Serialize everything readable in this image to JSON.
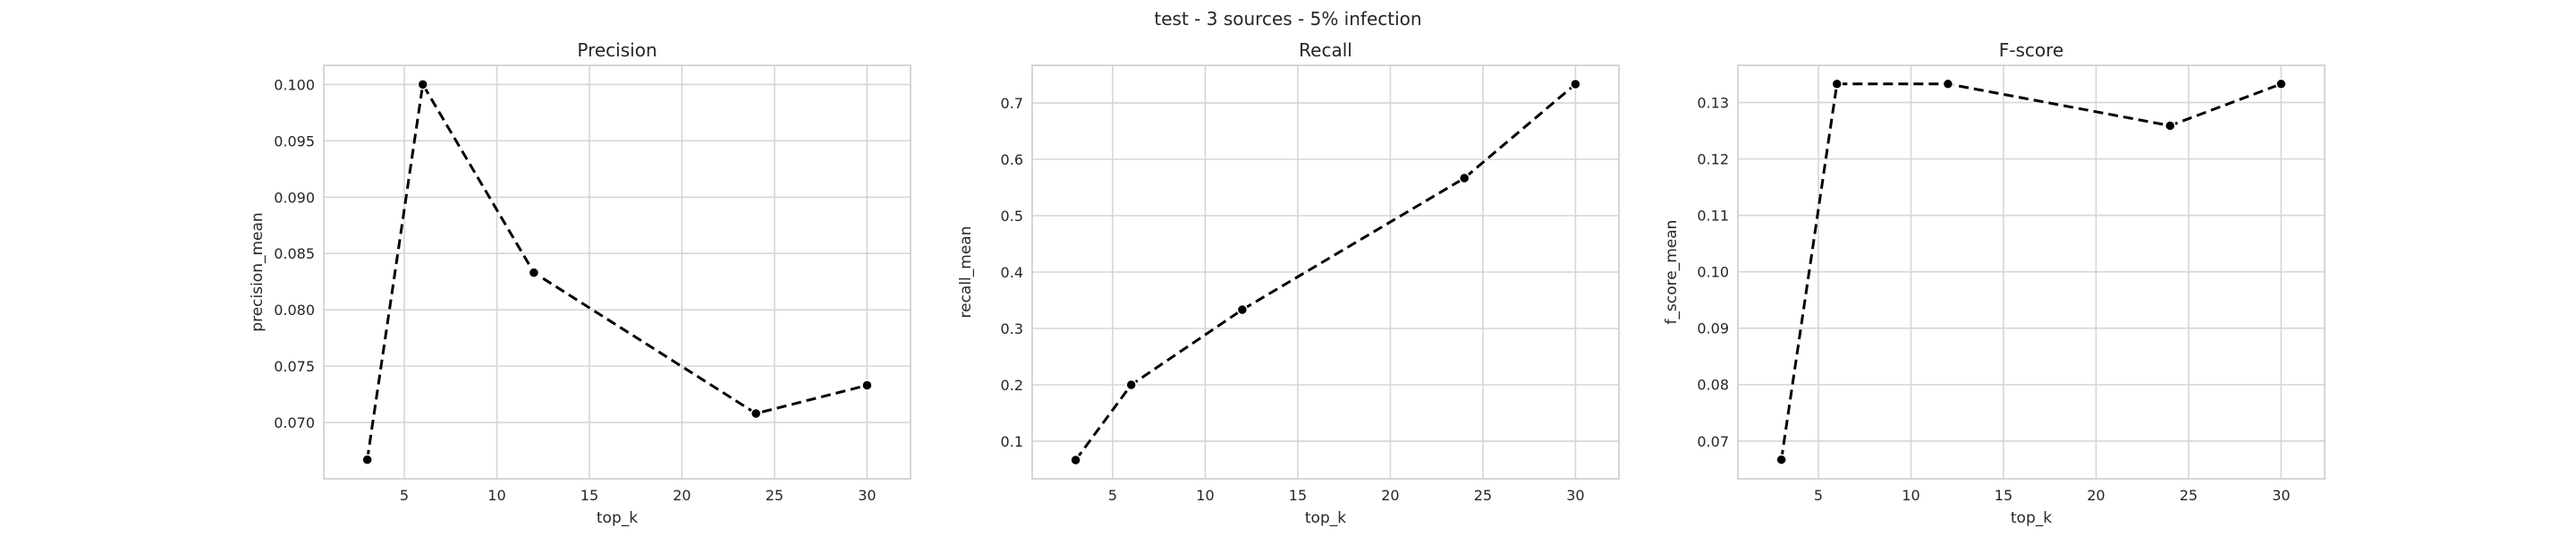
{
  "suptitle": "test - 3 sources - 5% infection",
  "chart_data": [
    {
      "type": "line",
      "title": "Precision",
      "xlabel": "top_k",
      "ylabel": "precision_mean",
      "x": [
        3,
        6,
        12,
        24,
        30
      ],
      "series": [
        {
          "values": [
            0.0667,
            0.1,
            0.0833,
            0.0708,
            0.0733
          ]
        }
      ],
      "xlim": [
        0.65,
        32.35
      ],
      "ylim": [
        0.065,
        0.1017
      ],
      "xticks": [
        5,
        10,
        15,
        20,
        25,
        30
      ],
      "xtick_labels": [
        "5",
        "10",
        "15",
        "20",
        "25",
        "30"
      ],
      "yticks": [
        0.07,
        0.075,
        0.08,
        0.085,
        0.09,
        0.095,
        0.1
      ],
      "ytick_labels": [
        "0.070",
        "0.075",
        "0.080",
        "0.085",
        "0.090",
        "0.095",
        "0.100"
      ],
      "grid": true,
      "line_style": "dashed",
      "marker": "circle",
      "color": "#000000"
    },
    {
      "type": "line",
      "title": "Recall",
      "xlabel": "top_k",
      "ylabel": "recall_mean",
      "x": [
        3,
        6,
        12,
        24,
        30
      ],
      "series": [
        {
          "values": [
            0.0667,
            0.2,
            0.3333,
            0.5667,
            0.7333
          ]
        }
      ],
      "xlim": [
        0.65,
        32.35
      ],
      "ylim": [
        0.0333,
        0.7667
      ],
      "xticks": [
        5,
        10,
        15,
        20,
        25,
        30
      ],
      "xtick_labels": [
        "5",
        "10",
        "15",
        "20",
        "25",
        "30"
      ],
      "yticks": [
        0.1,
        0.2,
        0.3,
        0.4,
        0.5,
        0.6,
        0.7
      ],
      "ytick_labels": [
        "0.1",
        "0.2",
        "0.3",
        "0.4",
        "0.5",
        "0.6",
        "0.7"
      ],
      "grid": true,
      "line_style": "dashed",
      "marker": "circle",
      "color": "#000000"
    },
    {
      "type": "line",
      "title": "F-score",
      "xlabel": "top_k",
      "ylabel": "f_score_mean",
      "x": [
        3,
        6,
        12,
        24,
        30
      ],
      "series": [
        {
          "values": [
            0.0667,
            0.1333,
            0.1333,
            0.1259,
            0.1333
          ]
        }
      ],
      "xlim": [
        0.65,
        32.35
      ],
      "ylim": [
        0.0633,
        0.1366
      ],
      "xticks": [
        5,
        10,
        15,
        20,
        25,
        30
      ],
      "xtick_labels": [
        "5",
        "10",
        "15",
        "20",
        "25",
        "30"
      ],
      "yticks": [
        0.07,
        0.08,
        0.09,
        0.1,
        0.11,
        0.12,
        0.13
      ],
      "ytick_labels": [
        "0.07",
        "0.08",
        "0.09",
        "0.10",
        "0.11",
        "0.12",
        "0.13"
      ],
      "grid": true,
      "line_style": "dashed",
      "marker": "circle",
      "color": "#000000"
    }
  ]
}
